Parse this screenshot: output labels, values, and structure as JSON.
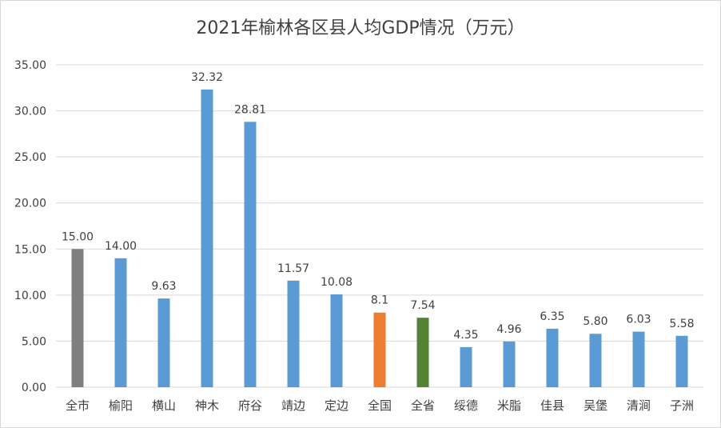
{
  "chart_data": {
    "type": "bar",
    "title": "2021年榆林各区县人均GDP情况（万元）",
    "categories": [
      "全市",
      "榆阳",
      "横山",
      "神木",
      "府谷",
      "靖边",
      "定边",
      "全国",
      "全省",
      "绥德",
      "米脂",
      "佳县",
      "吴堡",
      "清涧",
      "子洲"
    ],
    "values": [
      15.0,
      14.0,
      9.63,
      32.32,
      28.81,
      11.57,
      10.08,
      8.1,
      7.54,
      4.35,
      4.96,
      6.35,
      5.8,
      6.03,
      5.58
    ],
    "value_labels": [
      "15.00",
      "14.00",
      "9.63",
      "32.32",
      "28.81",
      "11.57",
      "10.08",
      "8.1",
      "7.54",
      "4.35",
      "4.96",
      "6.35",
      "5.80",
      "6.03",
      "5.58"
    ],
    "bar_colors": [
      "#7f7f7f",
      "#5b9bd5",
      "#5b9bd5",
      "#5b9bd5",
      "#5b9bd5",
      "#5b9bd5",
      "#5b9bd5",
      "#ed7d31",
      "#548235",
      "#5b9bd5",
      "#5b9bd5",
      "#5b9bd5",
      "#5b9bd5",
      "#5b9bd5",
      "#5b9bd5"
    ],
    "ylim": [
      0,
      35
    ],
    "yticks": [
      "0.00",
      "5.00",
      "10.00",
      "15.00",
      "20.00",
      "25.00",
      "30.00",
      "35.00"
    ],
    "grid": true,
    "legend": "none",
    "xlabel": "",
    "ylabel": ""
  }
}
